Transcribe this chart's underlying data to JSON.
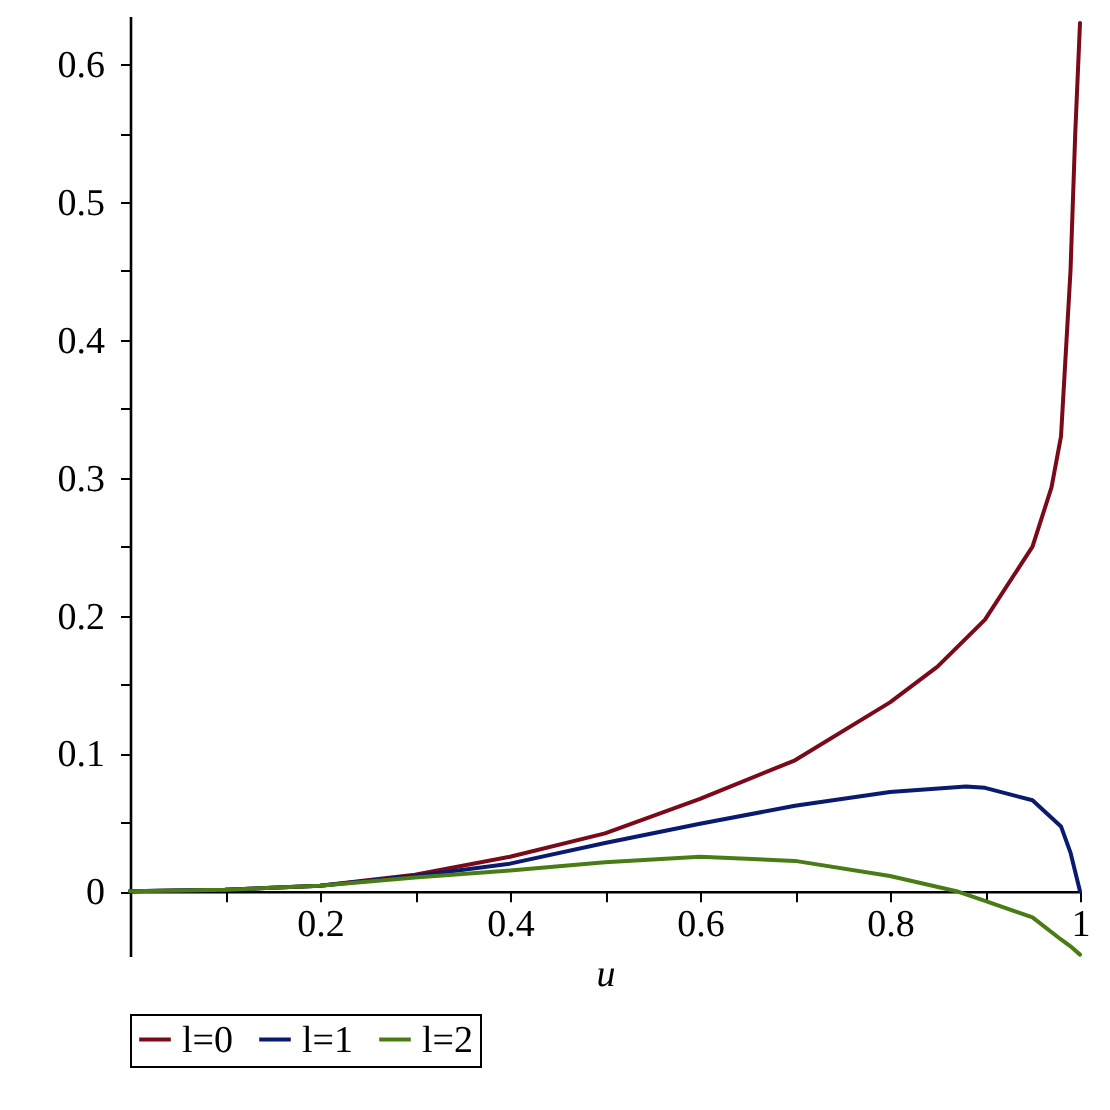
{
  "chart_data": {
    "type": "line",
    "xlabel": "u",
    "xlim": [
      0,
      1
    ],
    "ylim": [
      -0.047,
      0.635
    ],
    "xticks": [
      {
        "value": 0.1,
        "label": null
      },
      0.2,
      {
        "value": 0.3,
        "label": null
      },
      0.4,
      {
        "value": 0.5,
        "label": null
      },
      0.6,
      {
        "value": 0.7,
        "label": null
      },
      0.8,
      {
        "value": 0.9,
        "label": null
      },
      1
    ],
    "yticks": [
      0,
      {
        "value": 0.05,
        "label": null
      },
      0.1,
      {
        "value": 0.15,
        "label": null
      },
      0.2,
      {
        "value": 0.25,
        "label": null
      },
      0.3,
      {
        "value": 0.35,
        "label": null
      },
      0.4,
      {
        "value": 0.45,
        "label": null
      },
      0.5,
      {
        "value": 0.55,
        "label": null
      },
      0.6
    ],
    "legend": "bottom",
    "grid": false,
    "series": [
      {
        "name": "l=0",
        "color": "#7a0a1a",
        "x": [
          0,
          0.1,
          0.2,
          0.3,
          0.4,
          0.5,
          0.6,
          0.7,
          0.8,
          0.85,
          0.9,
          0.95,
          0.97,
          0.98,
          0.99,
          0.995,
          1
        ],
        "values": [
          0,
          0.001,
          0.004,
          0.012,
          0.025,
          0.042,
          0.067,
          0.095,
          0.137,
          0.163,
          0.197,
          0.25,
          0.293,
          0.33,
          0.45,
          0.55,
          0.63
        ]
      },
      {
        "name": "l=1",
        "color": "#0a1a6e",
        "x": [
          0,
          0.1,
          0.2,
          0.3,
          0.4,
          0.5,
          0.6,
          0.7,
          0.8,
          0.88,
          0.9,
          0.95,
          0.98,
          0.99,
          1
        ],
        "values": [
          0,
          0.001,
          0.004,
          0.011,
          0.02,
          0.035,
          0.049,
          0.062,
          0.072,
          0.076,
          0.075,
          0.066,
          0.047,
          0.028,
          0
        ]
      },
      {
        "name": "l=2",
        "color": "#4a7c16",
        "x": [
          0,
          0.1,
          0.2,
          0.3,
          0.4,
          0.5,
          0.6,
          0.7,
          0.8,
          0.87,
          0.9,
          0.95,
          0.98,
          0.99,
          1
        ],
        "values": [
          0,
          0.001,
          0.004,
          0.01,
          0.015,
          0.021,
          0.025,
          0.022,
          0.011,
          0,
          -0.007,
          -0.019,
          -0.035,
          -0.04,
          -0.046
        ]
      }
    ]
  }
}
